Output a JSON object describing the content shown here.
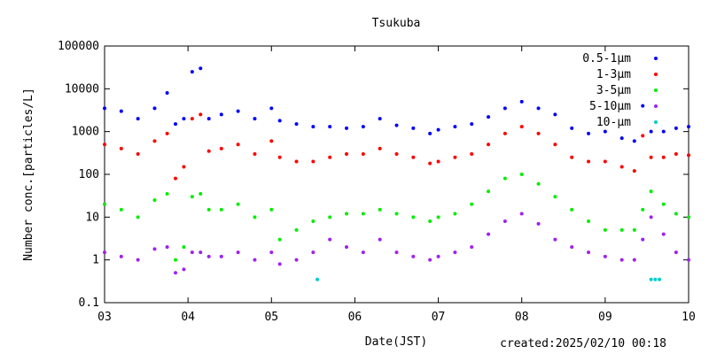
{
  "chart_data": {
    "type": "scatter",
    "title": "Tsukuba",
    "xlabel": "Date(JST)",
    "ylabel": "Number conc.[particles/L]",
    "x_unit": "days (day of month, Feb 2025)",
    "xlim": [
      3,
      10
    ],
    "ylim": [
      0.1,
      100000
    ],
    "yscale": "log",
    "x_ticks": [
      "03",
      "04",
      "05",
      "06",
      "07",
      "08",
      "09",
      "10"
    ],
    "y_ticks": [
      "0.1",
      "1",
      "10",
      "100",
      "1000",
      "10000",
      "100000"
    ],
    "grid": false,
    "legend_position": "top-right",
    "series": [
      {
        "name": "0.5-1μm",
        "color": "#0000ff",
        "x": [
          3.0,
          3.2,
          3.4,
          3.6,
          3.75,
          3.85,
          3.95,
          4.05,
          4.15,
          4.25,
          4.4,
          4.6,
          4.8,
          5.0,
          5.1,
          5.3,
          5.5,
          5.7,
          5.9,
          6.1,
          6.3,
          6.5,
          6.7,
          6.9,
          7.0,
          7.2,
          7.4,
          7.6,
          7.8,
          8.0,
          8.2,
          8.4,
          8.6,
          8.8,
          9.0,
          9.2,
          9.35,
          9.45,
          9.55,
          9.7,
          9.85,
          10.0
        ],
        "y": [
          3500,
          3000,
          2000,
          3500,
          8000,
          1500,
          2000,
          25000,
          30000,
          2000,
          2500,
          3000,
          2000,
          3500,
          1800,
          1500,
          1300,
          1300,
          1200,
          1300,
          2000,
          1400,
          1200,
          900,
          1100,
          1300,
          1500,
          2200,
          3500,
          5000,
          3500,
          2500,
          1200,
          900,
          1000,
          700,
          600,
          4000,
          1000,
          1000,
          1200,
          1300
        ]
      },
      {
        "name": "1-3μm",
        "color": "#ff0000",
        "x": [
          3.0,
          3.2,
          3.4,
          3.6,
          3.75,
          3.85,
          3.95,
          4.05,
          4.15,
          4.25,
          4.4,
          4.6,
          4.8,
          5.0,
          5.1,
          5.3,
          5.5,
          5.7,
          5.9,
          6.1,
          6.3,
          6.5,
          6.7,
          6.9,
          7.0,
          7.2,
          7.4,
          7.6,
          7.8,
          8.0,
          8.2,
          8.4,
          8.6,
          8.8,
          9.0,
          9.2,
          9.35,
          9.45,
          9.55,
          9.7,
          9.85,
          10.0
        ],
        "y": [
          500,
          400,
          300,
          600,
          900,
          80,
          150,
          2000,
          2500,
          350,
          400,
          500,
          300,
          600,
          250,
          200,
          200,
          250,
          300,
          300,
          400,
          300,
          250,
          180,
          200,
          250,
          300,
          500,
          900,
          1300,
          900,
          500,
          250,
          200,
          200,
          150,
          120,
          800,
          250,
          250,
          300,
          280
        ]
      },
      {
        "name": "3-5μm",
        "color": "#00ee00",
        "x": [
          3.0,
          3.2,
          3.4,
          3.6,
          3.75,
          3.85,
          3.95,
          4.05,
          4.15,
          4.25,
          4.4,
          4.6,
          4.8,
          5.0,
          5.1,
          5.3,
          5.5,
          5.7,
          5.9,
          6.1,
          6.3,
          6.5,
          6.7,
          6.9,
          7.0,
          7.2,
          7.4,
          7.6,
          7.8,
          8.0,
          8.2,
          8.4,
          8.6,
          8.8,
          9.0,
          9.2,
          9.35,
          9.45,
          9.55,
          9.7,
          9.85,
          10.0
        ],
        "y": [
          20,
          15,
          10,
          25,
          35,
          1,
          2,
          30,
          35,
          15,
          15,
          20,
          10,
          15,
          3,
          5,
          8,
          10,
          12,
          12,
          15,
          12,
          10,
          8,
          10,
          12,
          20,
          40,
          80,
          100,
          60,
          30,
          15,
          8,
          5,
          5,
          5,
          15,
          40,
          20,
          12,
          10
        ]
      },
      {
        "name": "5-10μm",
        "color": "#a020f0",
        "x": [
          3.0,
          3.2,
          3.4,
          3.6,
          3.75,
          3.85,
          3.95,
          4.05,
          4.15,
          4.25,
          4.4,
          4.6,
          4.8,
          5.0,
          5.1,
          5.3,
          5.5,
          5.7,
          5.9,
          6.1,
          6.3,
          6.5,
          6.7,
          6.9,
          7.0,
          7.2,
          7.4,
          7.6,
          7.8,
          8.0,
          8.2,
          8.4,
          8.6,
          8.8,
          9.0,
          9.2,
          9.35,
          9.45,
          9.55,
          9.7,
          9.85,
          10.0
        ],
        "y": [
          1.5,
          1.2,
          1.0,
          1.8,
          2.0,
          0.5,
          0.6,
          1.5,
          1.5,
          1.2,
          1.2,
          1.5,
          1.0,
          1.5,
          0.8,
          1.0,
          1.5,
          3.0,
          2.0,
          1.5,
          3.0,
          1.5,
          1.2,
          1.0,
          1.2,
          1.5,
          2.0,
          4.0,
          8.0,
          12.0,
          7.0,
          3.0,
          2.0,
          1.5,
          1.2,
          1.0,
          1.0,
          3.0,
          10.0,
          4.0,
          1.5,
          1.0
        ]
      },
      {
        "name": "10-μm",
        "color": "#00cccc",
        "x": [
          5.55,
          9.55,
          9.6,
          9.65
        ],
        "y": [
          0.35,
          0.35,
          0.35,
          0.35
        ]
      }
    ]
  },
  "footer": {
    "created": "created:2025/02/10 00:18"
  }
}
